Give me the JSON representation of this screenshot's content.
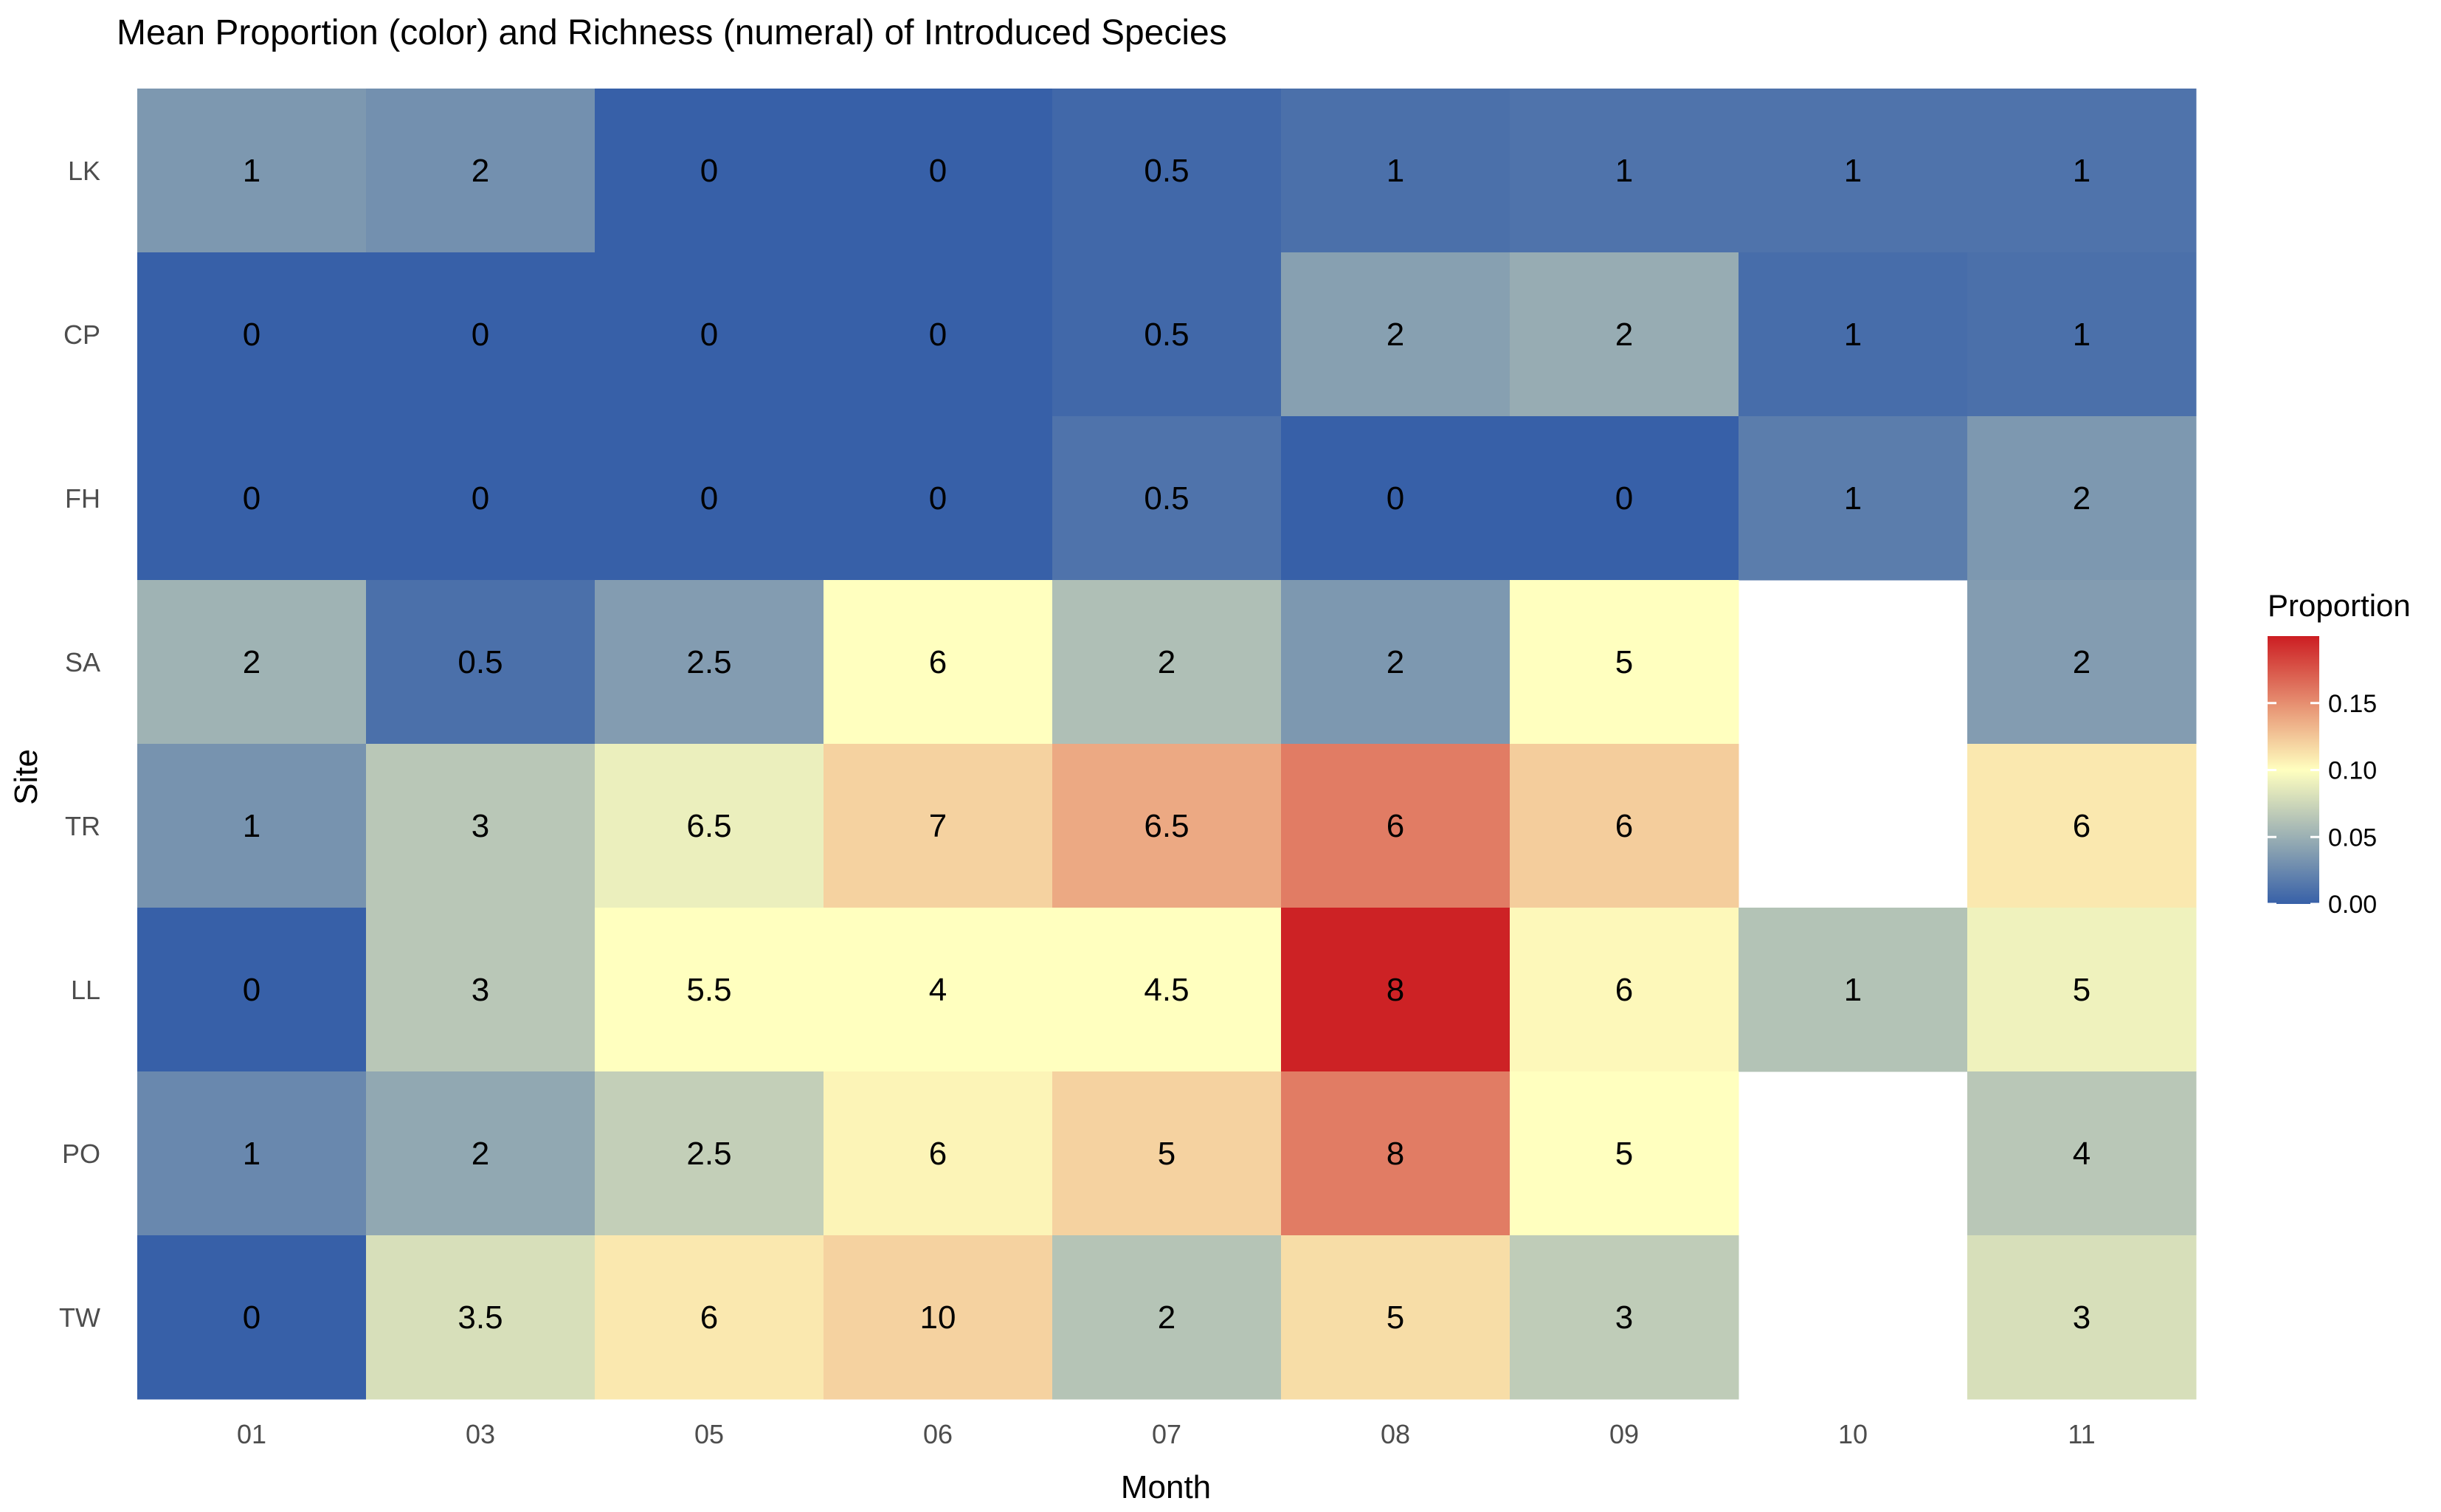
{
  "chart_data": {
    "type": "heatmap",
    "title": "Mean Proportion (color) and Richness (numeral) of Introduced Species",
    "xlabel": "Month",
    "ylabel": "Site",
    "x_categories": [
      "01",
      "03",
      "05",
      "06",
      "07",
      "08",
      "09",
      "10",
      "11"
    ],
    "y_categories": [
      "LK",
      "CP",
      "FH",
      "SA",
      "TR",
      "LL",
      "PO",
      "TW"
    ],
    "color_label": "Proportion",
    "color_range": [
      0,
      0.2
    ],
    "color_ticks": [
      "0.00",
      "0.05",
      "0.10",
      "0.15"
    ],
    "color_tick_values": [
      0,
      0.05,
      0.1,
      0.15
    ],
    "colors": {
      "low": "#3760a8",
      "mid": "#ffffbf",
      "high": "#cc1d22"
    },
    "proportion": [
      [
        0.035,
        0.03,
        0.0,
        0.0,
        0.005,
        0.01,
        0.012,
        0.012,
        0.012
      ],
      [
        0.0,
        0.0,
        0.0,
        0.0,
        0.005,
        0.04,
        0.048,
        0.008,
        0.01
      ],
      [
        0.0,
        0.0,
        0.0,
        0.0,
        0.012,
        0.0,
        0.0,
        0.018,
        0.035
      ],
      [
        0.052,
        0.01,
        0.038,
        0.1,
        0.06,
        0.035,
        0.1,
        null,
        0.038
      ],
      [
        0.032,
        0.065,
        0.09,
        0.12,
        0.138,
        0.158,
        0.122,
        null,
        0.11
      ],
      [
        0.0,
        0.065,
        0.1,
        0.1,
        0.1,
        0.198,
        0.103,
        0.062,
        0.092
      ],
      [
        0.025,
        0.045,
        0.07,
        0.105,
        0.12,
        0.158,
        0.1,
        null,
        0.065
      ],
      [
        0.0,
        0.08,
        0.11,
        0.12,
        0.063,
        0.115,
        0.068,
        null,
        0.08
      ]
    ],
    "richness": [
      [
        "1",
        "2",
        "0",
        "0",
        "0.5",
        "1",
        "1",
        "1",
        "1"
      ],
      [
        "0",
        "0",
        "0",
        "0",
        "0.5",
        "2",
        "2",
        "1",
        "1"
      ],
      [
        "0",
        "0",
        "0",
        "0",
        "0.5",
        "0",
        "0",
        "1",
        "2"
      ],
      [
        "2",
        "0.5",
        "2.5",
        "6",
        "2",
        "2",
        "5",
        "",
        "2"
      ],
      [
        "1",
        "3",
        "6.5",
        "7",
        "6.5",
        "6",
        "6",
        "",
        "6"
      ],
      [
        "0",
        "3",
        "5.5",
        "4",
        "4.5",
        "8",
        "6",
        "1",
        "5"
      ],
      [
        "1",
        "2",
        "2.5",
        "6",
        "5",
        "8",
        "5",
        "",
        "4"
      ],
      [
        "0",
        "3.5",
        "6",
        "10",
        "2",
        "5",
        "3",
        "",
        "3"
      ]
    ],
    "legend_position": "right",
    "grid": false
  }
}
